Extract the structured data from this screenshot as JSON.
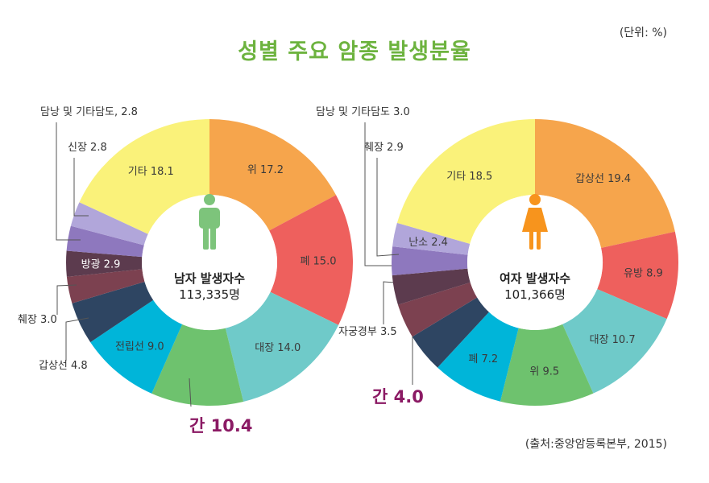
{
  "title": "성별 주요 암종 발생분율",
  "unit": "(단위: %)",
  "source": "(출처:중앙암등록본부, 2015)",
  "colors": {
    "title": "#6DB33F",
    "highlight": "#8B1A64",
    "male_icon": "#7DC47B",
    "female_icon": "#F7941D"
  },
  "chart_data": [
    {
      "type": "pie",
      "donut": true,
      "center_title": "남자 발생자수",
      "center_value": "113,335명",
      "icon": "male-icon",
      "slices": [
        {
          "label": "위 17.2",
          "category": "위",
          "value": 17.2,
          "color": "#F6A54C"
        },
        {
          "label": "폐 15.0",
          "category": "폐",
          "value": 15.0,
          "color": "#EE605D"
        },
        {
          "label": "대장 14.0",
          "category": "대장",
          "value": 14.0,
          "color": "#6FCAC9"
        },
        {
          "label": "간 10.4",
          "category": "간",
          "value": 10.4,
          "color": "#6EC26E"
        },
        {
          "label": "전립선 9.0",
          "category": "전립선",
          "value": 9.0,
          "color": "#00B5D9"
        },
        {
          "label": "갑상선 4.8",
          "category": "갑상선",
          "value": 4.8,
          "color": "#2E4562"
        },
        {
          "label": "췌장 3.0",
          "category": "췌장",
          "value": 3.0,
          "color": "#7C4150"
        },
        {
          "label": "방광 2.9",
          "category": "방광",
          "value": 2.9,
          "color": "#5C3B4E"
        },
        {
          "label": "담낭 및 기타담도, 2.8",
          "category": "담낭 및 기타담도",
          "value": 2.8,
          "color": "#8E78BE"
        },
        {
          "label": "신장 2.8",
          "category": "신장",
          "value": 2.8,
          "color": "#B1A6DA"
        },
        {
          "label": "기타 18.1",
          "category": "기타",
          "value": 18.1,
          "color": "#FAF27A"
        }
      ]
    },
    {
      "type": "pie",
      "donut": true,
      "center_title": "여자 발생자수",
      "center_value": "101,366명",
      "icon": "female-icon",
      "slices": [
        {
          "label": "갑상선 19.4",
          "category": "갑상선",
          "value": 19.4,
          "color": "#F6A54C"
        },
        {
          "label": "유방 8.9",
          "category": "유방",
          "value": 8.9,
          "color": "#EE605D"
        },
        {
          "label": "대장 10.7",
          "category": "대장",
          "value": 10.7,
          "color": "#6FCAC9"
        },
        {
          "label": "위 9.5",
          "category": "위",
          "value": 9.5,
          "color": "#6EC26E"
        },
        {
          "label": "폐 7.2",
          "category": "폐",
          "value": 7.2,
          "color": "#00B5D9"
        },
        {
          "label": "간 4.0",
          "category": "간",
          "value": 4.0,
          "color": "#2E4562"
        },
        {
          "label": "자궁경부 3.5",
          "category": "자궁경부",
          "value": 3.5,
          "color": "#7C4150"
        },
        {
          "label": "담낭 및 기타담도 3.0",
          "category": "담낭 및 기타담도",
          "value": 3.0,
          "color": "#5C3B4E"
        },
        {
          "label": "췌장 2.9",
          "category": "췌장",
          "value": 2.9,
          "color": "#8E78BE"
        },
        {
          "label": "난소 2.4",
          "category": "난소",
          "value": 2.4,
          "color": "#B1A6DA"
        },
        {
          "label": "기타 18.5",
          "category": "기타",
          "value": 18.5,
          "color": "#FAF27A"
        }
      ]
    }
  ]
}
